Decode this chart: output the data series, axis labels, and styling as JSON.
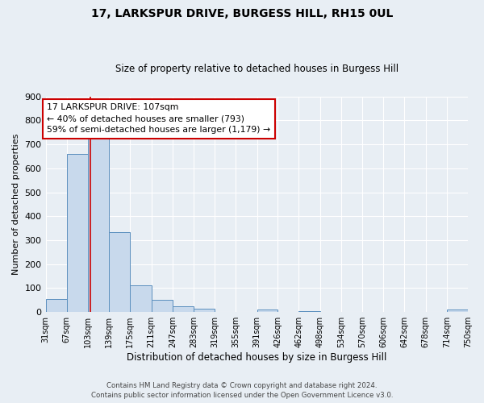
{
  "title": "17, LARKSPUR DRIVE, BURGESS HILL, RH15 0UL",
  "subtitle": "Size of property relative to detached houses in Burgess Hill",
  "xlabel": "Distribution of detached houses by size in Burgess Hill",
  "ylabel": "Number of detached properties",
  "bar_edges": [
    31,
    67,
    103,
    139,
    175,
    211,
    247,
    283,
    319,
    355,
    391,
    426,
    462,
    498,
    534,
    570,
    606,
    642,
    678,
    714,
    750
  ],
  "bar_heights": [
    55,
    660,
    750,
    335,
    110,
    50,
    25,
    15,
    0,
    0,
    10,
    0,
    5,
    0,
    0,
    0,
    0,
    0,
    0,
    10
  ],
  "bar_color": "#c8d9ec",
  "bar_edgecolor": "#5b8fbe",
  "vline_x": 107,
  "vline_color": "#cc0000",
  "annotation_text": "17 LARKSPUR DRIVE: 107sqm\n← 40% of detached houses are smaller (793)\n59% of semi-detached houses are larger (1,179) →",
  "annotation_box_color": "#ffffff",
  "annotation_box_edgecolor": "#cc0000",
  "ylim": [
    0,
    900
  ],
  "yticks": [
    0,
    100,
    200,
    300,
    400,
    500,
    600,
    700,
    800,
    900
  ],
  "tick_labels": [
    "31sqm",
    "67sqm",
    "103sqm",
    "139sqm",
    "175sqm",
    "211sqm",
    "247sqm",
    "283sqm",
    "319sqm",
    "355sqm",
    "391sqm",
    "426sqm",
    "462sqm",
    "498sqm",
    "534sqm",
    "570sqm",
    "606sqm",
    "642sqm",
    "678sqm",
    "714sqm",
    "750sqm"
  ],
  "background_color": "#e8eef4",
  "grid_color": "#ffffff",
  "footer_line1": "Contains HM Land Registry data © Crown copyright and database right 2024.",
  "footer_line2": "Contains public sector information licensed under the Open Government Licence v3.0."
}
